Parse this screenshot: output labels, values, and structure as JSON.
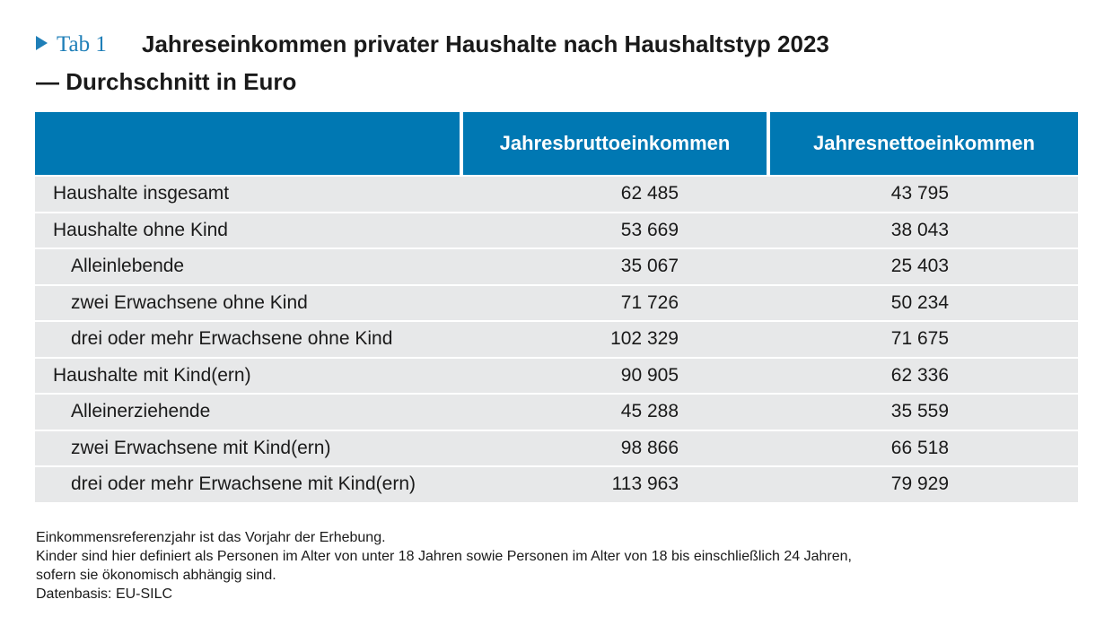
{
  "title": {
    "tab_label": "Tab 1",
    "line1": "Jahreseinkommen privater Haushalte nach Haushaltstyp 2023",
    "line2": "— Durchschnitt in Euro"
  },
  "table": {
    "headers": [
      "",
      "Jahresbruttoeinkommen",
      "Jahresnettoeinkommen"
    ],
    "rows": [
      {
        "label": "Haushalte insgesamt",
        "gross": "62 485",
        "net": "43 795",
        "indent": false
      },
      {
        "label": "Haushalte ohne Kind",
        "gross": "53 669",
        "net": "38 043",
        "indent": false
      },
      {
        "label": "Alleinlebende",
        "gross": "35 067",
        "net": "25 403",
        "indent": true
      },
      {
        "label": "zwei Erwachsene ohne Kind",
        "gross": "71 726",
        "net": "50 234",
        "indent": true
      },
      {
        "label": "drei oder mehr Erwachsene ohne Kind",
        "gross": "102 329",
        "net": "71 675",
        "indent": true
      },
      {
        "label": "Haushalte mit Kind(ern)",
        "gross": "90 905",
        "net": "62 336",
        "indent": false
      },
      {
        "label": "Alleinerziehende",
        "gross": "45 288",
        "net": "35 559",
        "indent": true
      },
      {
        "label": "zwei Erwachsene mit Kind(ern)",
        "gross": "98 866",
        "net": "66 518",
        "indent": true
      },
      {
        "label": "drei oder mehr Erwachsene mit Kind(ern)",
        "gross": "113 963",
        "net": "79 929",
        "indent": true
      }
    ]
  },
  "notes": [
    "Einkommensreferenzjahr ist das Vorjahr der Erhebung.",
    "Kinder sind hier definiert als Personen im Alter von unter 18 Jahren sowie Personen im Alter von 18 bis einschließlich 24 Jahren,",
    "sofern sie ökonomisch abhängig sind.",
    "Datenbasis: EU-SILC"
  ],
  "colors": {
    "accent": "#0078b3",
    "row_background": "#e7e8e9",
    "tab_marker": "#1f7fb8"
  }
}
